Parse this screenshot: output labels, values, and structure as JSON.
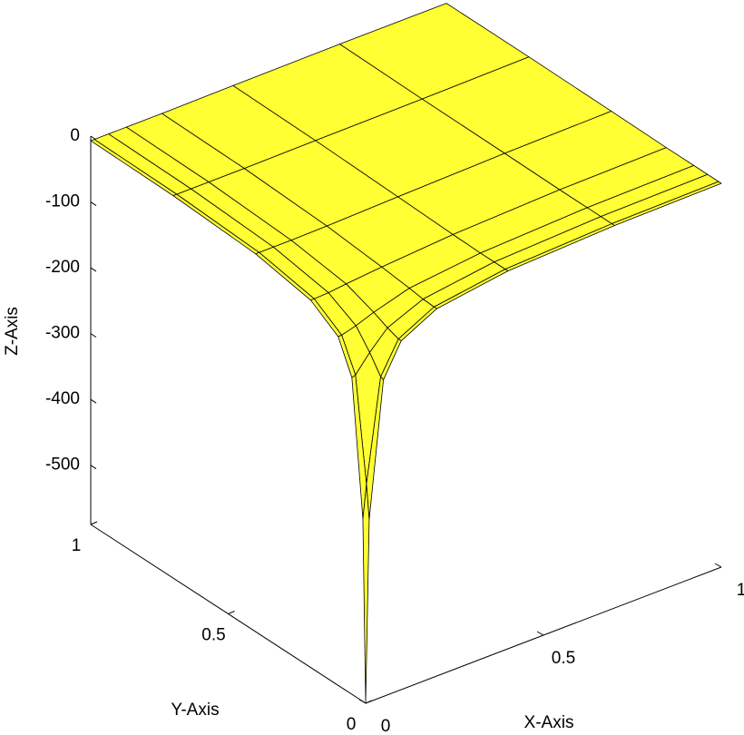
{
  "chart_data": {
    "type": "surface",
    "xlabel": "X-Axis",
    "ylabel": "Y-Axis",
    "zlabel": "Z-Axis",
    "x": [
      0,
      0.01,
      0.05,
      0.1,
      0.2,
      0.4,
      0.7,
      1
    ],
    "y": [
      0,
      0.01,
      0.05,
      0.1,
      0.2,
      0.4,
      0.7,
      1
    ],
    "z": [
      [
        -590,
        -313,
        -109,
        -60,
        -32,
        -16,
        -9,
        -7
      ],
      [
        -313,
        -262,
        -107,
        -60,
        -32,
        -16,
        -9,
        -7
      ],
      [
        -109,
        -107,
        -81,
        -54,
        -31,
        -16,
        -9,
        -7
      ],
      [
        -60,
        -60,
        -54,
        -44,
        -28,
        -16,
        -9,
        -7
      ],
      [
        -32,
        -32,
        -31,
        -28,
        -23,
        -15,
        -9,
        -7
      ],
      [
        -16,
        -16,
        -16,
        -16,
        -15,
        -12,
        -8,
        -6
      ],
      [
        -9,
        -9,
        -9,
        -9,
        -9,
        -8,
        -7,
        -5
      ],
      [
        -7,
        -7,
        -7,
        -7,
        -7,
        -6,
        -5,
        -5
      ]
    ],
    "xlim": [
      0,
      1
    ],
    "ylim": [
      0,
      1
    ],
    "zlim": [
      -590,
      0
    ],
    "xticks": [
      0,
      0.5,
      1
    ],
    "yticks": [
      0,
      0.5,
      1
    ],
    "zticks": [
      0,
      -100,
      -200,
      -300,
      -400,
      -500
    ],
    "color": "#ffff33",
    "edgecolor": "#000000"
  }
}
